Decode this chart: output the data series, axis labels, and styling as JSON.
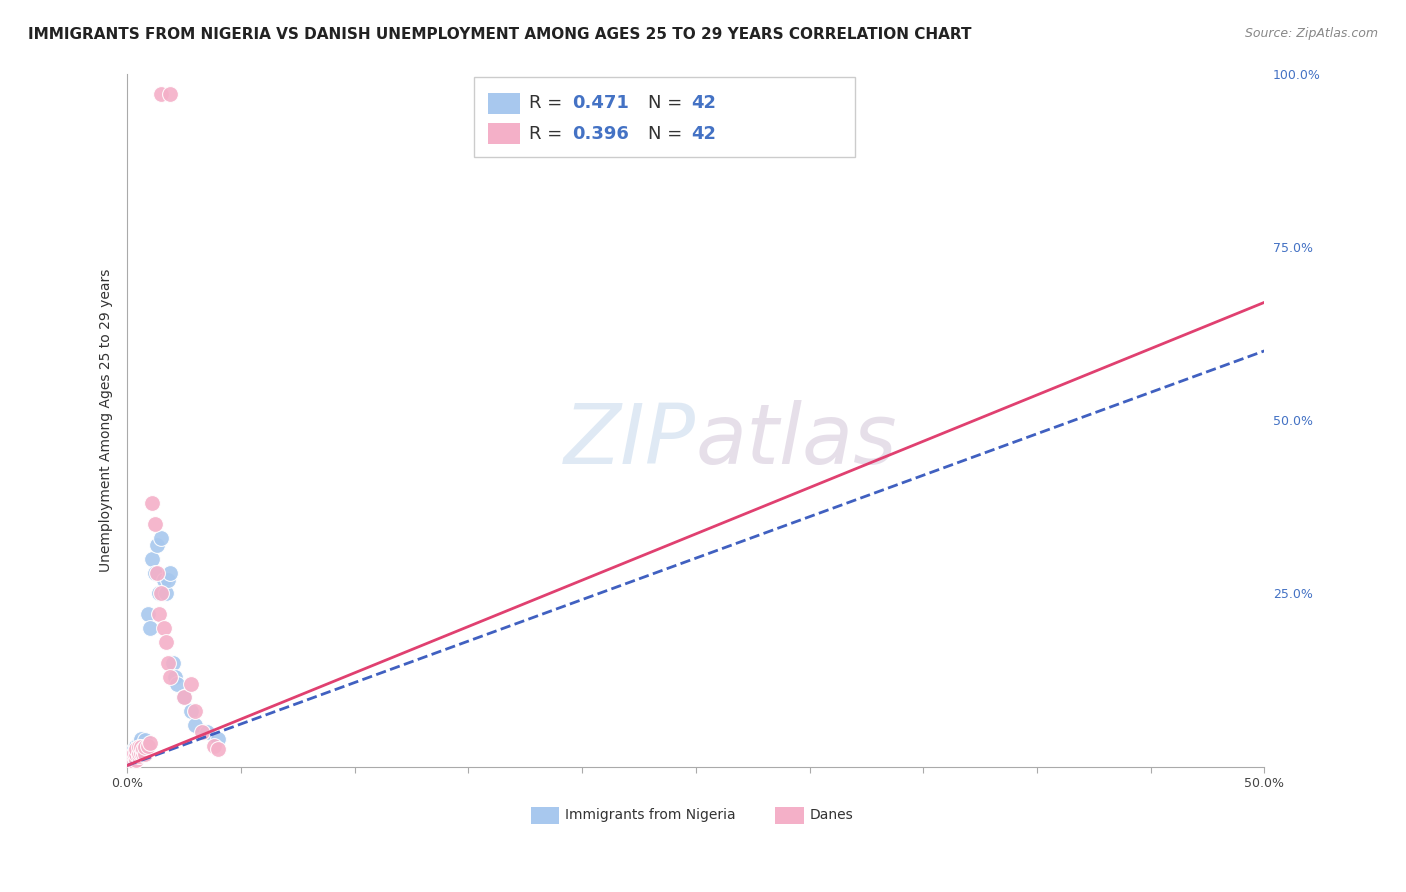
{
  "title": "IMMIGRANTS FROM NIGERIA VS DANISH UNEMPLOYMENT AMONG AGES 25 TO 29 YEARS CORRELATION CHART",
  "source": "Source: ZipAtlas.com",
  "ylabel": "Unemployment Among Ages 25 to 29 years",
  "xlim": [
    0.0,
    0.5
  ],
  "ylim": [
    0.0,
    1.0
  ],
  "watermark_text": "ZIPatlas",
  "legend_R1": "0.471",
  "legend_N1": "42",
  "legend_R2": "0.396",
  "legend_N2": "42",
  "blue_color": "#a8c8ee",
  "pink_color": "#f4b0c8",
  "blue_line_color": "#4060c0",
  "pink_line_color": "#e04070",
  "blue_text_color": "#4472c4",
  "scatter_blue": [
    [
      0.0005,
      0.005
    ],
    [
      0.001,
      0.008
    ],
    [
      0.001,
      0.012
    ],
    [
      0.0012,
      0.01
    ],
    [
      0.0015,
      0.015
    ],
    [
      0.002,
      0.012
    ],
    [
      0.002,
      0.018
    ],
    [
      0.0025,
      0.015
    ],
    [
      0.003,
      0.01
    ],
    [
      0.003,
      0.02
    ],
    [
      0.003,
      0.025
    ],
    [
      0.004,
      0.015
    ],
    [
      0.004,
      0.022
    ],
    [
      0.004,
      0.03
    ],
    [
      0.005,
      0.02
    ],
    [
      0.005,
      0.025
    ],
    [
      0.005,
      0.035
    ],
    [
      0.006,
      0.03
    ],
    [
      0.006,
      0.04
    ],
    [
      0.007,
      0.025
    ],
    [
      0.007,
      0.032
    ],
    [
      0.008,
      0.025
    ],
    [
      0.008,
      0.038
    ],
    [
      0.009,
      0.22
    ],
    [
      0.01,
      0.2
    ],
    [
      0.011,
      0.3
    ],
    [
      0.012,
      0.28
    ],
    [
      0.013,
      0.32
    ],
    [
      0.014,
      0.25
    ],
    [
      0.015,
      0.33
    ],
    [
      0.016,
      0.27
    ],
    [
      0.017,
      0.25
    ],
    [
      0.018,
      0.27
    ],
    [
      0.019,
      0.28
    ],
    [
      0.02,
      0.15
    ],
    [
      0.021,
      0.13
    ],
    [
      0.022,
      0.12
    ],
    [
      0.025,
      0.1
    ],
    [
      0.028,
      0.08
    ],
    [
      0.03,
      0.06
    ],
    [
      0.035,
      0.05
    ],
    [
      0.04,
      0.04
    ]
  ],
  "scatter_pink": [
    [
      0.0005,
      0.005
    ],
    [
      0.001,
      0.008
    ],
    [
      0.001,
      0.012
    ],
    [
      0.0012,
      0.01
    ],
    [
      0.0015,
      0.006
    ],
    [
      0.002,
      0.01
    ],
    [
      0.002,
      0.015
    ],
    [
      0.0025,
      0.012
    ],
    [
      0.003,
      0.008
    ],
    [
      0.003,
      0.015
    ],
    [
      0.003,
      0.02
    ],
    [
      0.004,
      0.01
    ],
    [
      0.004,
      0.018
    ],
    [
      0.004,
      0.025
    ],
    [
      0.005,
      0.015
    ],
    [
      0.005,
      0.02
    ],
    [
      0.005,
      0.028
    ],
    [
      0.006,
      0.02
    ],
    [
      0.006,
      0.028
    ],
    [
      0.007,
      0.018
    ],
    [
      0.007,
      0.025
    ],
    [
      0.008,
      0.018
    ],
    [
      0.008,
      0.028
    ],
    [
      0.009,
      0.03
    ],
    [
      0.01,
      0.035
    ],
    [
      0.011,
      0.38
    ],
    [
      0.012,
      0.35
    ],
    [
      0.013,
      0.28
    ],
    [
      0.014,
      0.22
    ],
    [
      0.015,
      0.25
    ],
    [
      0.016,
      0.2
    ],
    [
      0.017,
      0.18
    ],
    [
      0.018,
      0.15
    ],
    [
      0.019,
      0.13
    ],
    [
      0.015,
      0.97
    ],
    [
      0.019,
      0.97
    ],
    [
      0.025,
      0.1
    ],
    [
      0.028,
      0.12
    ],
    [
      0.03,
      0.08
    ],
    [
      0.033,
      0.05
    ],
    [
      0.038,
      0.03
    ],
    [
      0.04,
      0.025
    ]
  ],
  "trend_blue": [
    0.0,
    0.002,
    0.5,
    0.6
  ],
  "trend_pink": [
    0.0,
    0.002,
    0.5,
    0.67
  ],
  "bg_color": "#ffffff",
  "grid_color": "#dddddd"
}
